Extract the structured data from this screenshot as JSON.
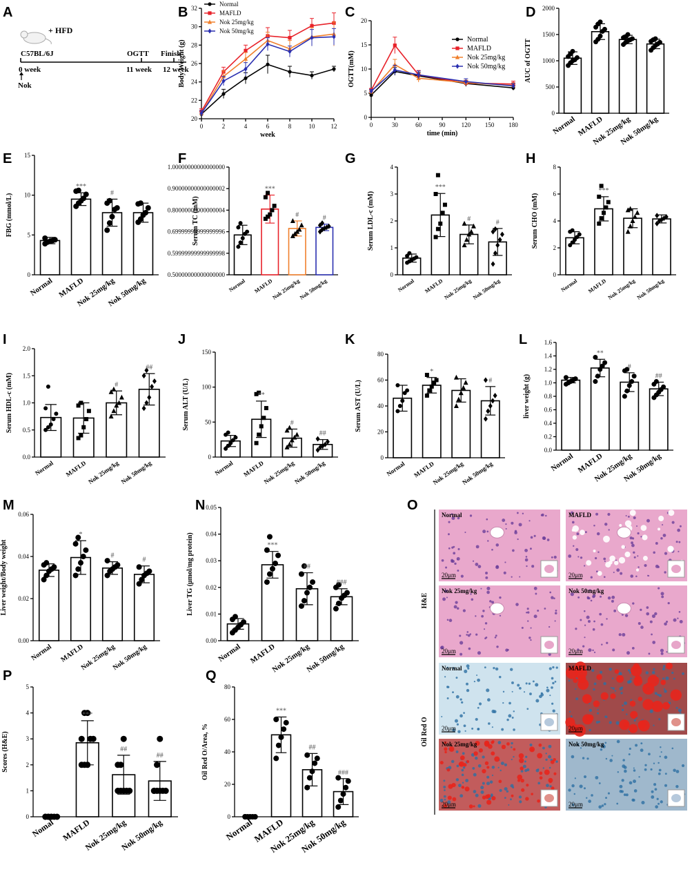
{
  "panel_letters": [
    "A",
    "B",
    "C",
    "D",
    "E",
    "F",
    "G",
    "H",
    "I",
    "J",
    "K",
    "L",
    "M",
    "N",
    "O",
    "P",
    "Q"
  ],
  "timeline": {
    "strain": "C57BL/6J",
    "diet": "HFD",
    "plus": "+",
    "start_week": "0 week",
    "treatment": "Nok",
    "ogtt_label": "OGTT",
    "ogtt_week": "11 week",
    "finish_label": "Finish",
    "finish_week": "12 week"
  },
  "groups": [
    "Normal",
    "MAFLD",
    "Nok 25mg/kg",
    "Nok 50mg/kg"
  ],
  "colors": {
    "normal": "#000000",
    "mafld": "#e8222a",
    "nok25": "#f07f2c",
    "nok50": "#2a2fb0"
  },
  "chart_data": [
    {
      "panel": "B",
      "type": "line",
      "xlabel": "week",
      "ylabel": "Body Weight (g)",
      "x": [
        0,
        2,
        4,
        6,
        8,
        10,
        12
      ],
      "xlim": [
        0,
        12
      ],
      "ylim": [
        20,
        32
      ],
      "yticks": [
        20,
        22,
        24,
        26,
        28,
        30,
        32
      ],
      "series": [
        {
          "name": "Normal",
          "values": [
            20.5,
            22.7,
            24.4,
            25.9,
            25.1,
            24.7,
            25.4
          ],
          "err": [
            0.3,
            0.5,
            0.6,
            1.0,
            0.6,
            0.4,
            0.3
          ]
        },
        {
          "name": "MAFLD",
          "values": [
            20.8,
            25.1,
            27.4,
            29.0,
            28.8,
            30.1,
            30.4
          ],
          "err": [
            0.3,
            0.5,
            0.6,
            0.9,
            0.8,
            0.8,
            1.1
          ]
        },
        {
          "name": "Nok 25mg/kg",
          "values": [
            20.6,
            24.6,
            26.5,
            28.5,
            27.6,
            28.9,
            29.2
          ],
          "err": [
            0.3,
            0.6,
            0.7,
            0.9,
            0.9,
            1.0,
            1.3
          ]
        },
        {
          "name": "Nok 50mg/kg",
          "values": [
            20.6,
            24.1,
            25.4,
            28.1,
            27.3,
            28.8,
            28.9
          ],
          "err": [
            0.3,
            0.5,
            0.7,
            0.7,
            0.6,
            0.9,
            0.9
          ]
        }
      ]
    },
    {
      "panel": "C",
      "type": "line",
      "xlabel": "time (min)",
      "ylabel": "OGTT(mM)",
      "x": [
        0,
        30,
        60,
        120,
        180
      ],
      "xticks": [
        0,
        30,
        60,
        90,
        120,
        150,
        180
      ],
      "xlim": [
        0,
        180
      ],
      "ylim": [
        0,
        20
      ],
      "yticks": [
        0,
        5,
        10,
        15,
        20
      ],
      "series": [
        {
          "name": "Normal",
          "values": [
            4.6,
            9.5,
            8.6,
            7.0,
            6.1
          ],
          "err": [
            0.3,
            0.8,
            0.7,
            0.6,
            0.5
          ]
        },
        {
          "name": "MAFLD",
          "values": [
            5.6,
            14.9,
            8.8,
            7.1,
            6.9
          ],
          "err": [
            0.4,
            1.7,
            0.9,
            0.5,
            0.6
          ]
        },
        {
          "name": "Nok 25mg/kg",
          "values": [
            5.3,
            10.9,
            8.1,
            7.2,
            6.6
          ],
          "err": [
            0.4,
            1.1,
            0.8,
            0.5,
            0.5
          ]
        },
        {
          "name": "Nok 50mg/kg",
          "values": [
            5.4,
            9.8,
            8.8,
            7.4,
            6.5
          ],
          "err": [
            0.4,
            1.0,
            0.8,
            0.6,
            0.5
          ]
        }
      ]
    },
    {
      "panel": "D",
      "type": "bar",
      "ylabel": "AUC of OGTT",
      "categories": [
        "Normal",
        "MAFLD",
        "Nok 25mg/kg",
        "Nok 50mg/kg"
      ],
      "values": [
        1050,
        1555,
        1405,
        1320
      ],
      "err": [
        120,
        150,
        80,
        90
      ],
      "ylim": [
        0,
        2000
      ],
      "yticks": [
        0,
        500,
        1000,
        1500,
        2000
      ],
      "sig": [
        "",
        "",
        "",
        ""
      ],
      "points": [
        [
          910,
          960,
          1000,
          1020,
          1060,
          1080,
          1130,
          1180
        ],
        [
          1360,
          1410,
          1470,
          1560,
          1600,
          1640,
          1700,
          1740
        ],
        [
          1310,
          1350,
          1380,
          1400,
          1420,
          1440,
          1460,
          1500
        ],
        [
          1200,
          1250,
          1290,
          1320,
          1350,
          1370,
          1400,
          1420
        ]
      ]
    },
    {
      "panel": "E",
      "type": "bar",
      "ylabel": "FBG (mmol/L)",
      "categories": [
        "Normal",
        "MAFLD",
        "Nok 25mg/kg",
        "Nok 50mg/kg"
      ],
      "values": [
        4.3,
        9.5,
        7.8,
        7.8
      ],
      "err": [
        0.4,
        0.8,
        1.7,
        1.2
      ],
      "ylim": [
        0,
        15
      ],
      "yticks": [
        0,
        5,
        10,
        15
      ],
      "sig": [
        "",
        "***",
        "#",
        ""
      ],
      "points": [
        [
          3.9,
          4.1,
          4.2,
          4.3,
          4.4,
          4.6
        ],
        [
          8.6,
          9.0,
          9.3,
          9.6,
          10.1,
          10.5,
          10.6
        ],
        [
          5.6,
          6.5,
          7.3,
          8.2,
          8.4,
          9.0,
          9.3
        ],
        [
          6.6,
          7.0,
          7.5,
          7.8,
          8.4,
          8.9,
          9.0
        ]
      ]
    },
    {
      "panel": "F",
      "type": "bar",
      "ylabel": "Serum TC (mM)",
      "categories": [
        "Normal",
        "MAFLD",
        "Nok 25mg/kg",
        "Nok 50mg/kg"
      ],
      "values": [
        0.685,
        0.805,
        0.715,
        0.72
      ],
      "err": [
        0.045,
        0.065,
        0.035,
        0.015
      ],
      "ylim": [
        0.5,
        1.0
      ],
      "yticks": [
        0.5,
        0.6,
        0.7,
        0.8,
        0.9,
        1.0
      ],
      "sig": [
        "",
        "***",
        "#",
        "#"
      ],
      "points": [
        [
          0.63,
          0.65,
          0.67,
          0.69,
          0.7,
          0.72,
          0.74
        ],
        [
          0.76,
          0.77,
          0.78,
          0.8,
          0.82,
          0.86,
          0.88
        ],
        [
          0.68,
          0.69,
          0.7,
          0.71,
          0.73,
          0.75
        ],
        [
          0.7,
          0.71,
          0.715,
          0.72,
          0.725,
          0.73,
          0.74
        ]
      ]
    },
    {
      "panel": "G",
      "type": "bar",
      "ylabel": "Serum LDL-c (mM)",
      "categories": [
        "Normal",
        "MAFLD",
        "Nok 25mg/kg",
        "Nok 50mg/kg"
      ],
      "values": [
        0.62,
        2.22,
        1.5,
        1.22
      ],
      "err": [
        0.15,
        0.8,
        0.35,
        0.5
      ],
      "ylim": [
        0,
        4
      ],
      "yticks": [
        0,
        1,
        2,
        3,
        4
      ],
      "sig": [
        "",
        "***",
        "#",
        "#"
      ],
      "points": [
        [
          0.45,
          0.5,
          0.55,
          0.6,
          0.65,
          0.7,
          0.8
        ],
        [
          1.4,
          1.7,
          1.9,
          2.3,
          2.6,
          3.0,
          3.7
        ],
        [
          1.1,
          1.3,
          1.5,
          1.6,
          1.8,
          1.9
        ],
        [
          0.4,
          0.8,
          1.1,
          1.3,
          1.5,
          1.6,
          1.7
        ]
      ]
    },
    {
      "panel": "H",
      "type": "bar",
      "ylabel": "Serum CHO (mM)",
      "categories": [
        "Normal",
        "MAFLD",
        "Nok 25mg/kg",
        "Nok 50mg/kg"
      ],
      "values": [
        2.75,
        4.9,
        4.2,
        4.15
      ],
      "err": [
        0.45,
        0.9,
        0.7,
        0.3
      ],
      "ylim": [
        0,
        8
      ],
      "yticks": [
        0,
        2,
        4,
        6,
        8
      ],
      "sig": [
        "",
        "***",
        "",
        ""
      ],
      "points": [
        [
          2.2,
          2.4,
          2.6,
          2.8,
          3.0,
          3.2,
          3.3
        ],
        [
          3.8,
          4.2,
          4.6,
          5.0,
          5.4,
          5.8,
          6.6
        ],
        [
          3.2,
          3.6,
          4.0,
          4.3,
          4.6,
          4.8,
          4.9
        ],
        [
          3.8,
          4.0,
          4.1,
          4.2,
          4.3,
          4.4
        ]
      ]
    },
    {
      "panel": "I",
      "type": "bar",
      "ylabel": "Serum  HDL-c (mM)",
      "categories": [
        "Normal",
        "MAFLD",
        "Nok 25mg/kg",
        "Nok 50mg/kg"
      ],
      "values": [
        0.73,
        0.72,
        1.0,
        1.25
      ],
      "err": [
        0.24,
        0.28,
        0.22,
        0.29
      ],
      "ylim": [
        0,
        2
      ],
      "yticks": [
        0,
        0.5,
        1.0,
        1.5,
        2.0
      ],
      "sig": [
        "",
        "",
        "#",
        "##"
      ],
      "points": [
        [
          0.5,
          0.55,
          0.6,
          0.7,
          0.8,
          0.9,
          1.3
        ],
        [
          0.35,
          0.4,
          0.55,
          0.7,
          0.85,
          0.95,
          1.0
        ],
        [
          0.75,
          0.85,
          0.95,
          1.0,
          1.1,
          1.2,
          1.25
        ],
        [
          0.9,
          1.0,
          1.1,
          1.3,
          1.4,
          1.5,
          1.6
        ]
      ]
    },
    {
      "panel": "J",
      "type": "bar",
      "ylabel": "Serum ALT (U/L)",
      "categories": [
        "Normal",
        "MAFLD",
        "Nok 25mg/kg",
        "Nok 50mg/kg"
      ],
      "values": [
        23,
        54,
        27,
        18
      ],
      "err": [
        8,
        26,
        13,
        7
      ],
      "ylim": [
        0,
        150
      ],
      "yticks": [
        0,
        50,
        100,
        150
      ],
      "sig": [
        "",
        "**",
        "#",
        "##"
      ],
      "points": [
        [
          12,
          16,
          20,
          24,
          28,
          32,
          35
        ],
        [
          20,
          32,
          44,
          56,
          70,
          90,
          92
        ],
        [
          14,
          18,
          24,
          28,
          32,
          38,
          42
        ],
        [
          10,
          14,
          16,
          18,
          22,
          26
        ]
      ]
    },
    {
      "panel": "K",
      "type": "bar",
      "ylabel": "Serum AST (U/L)",
      "categories": [
        "Normal",
        "MAFLD",
        "Nok 25mg/kg",
        "Nok 50mg/kg"
      ],
      "values": [
        46,
        56,
        52,
        44
      ],
      "err": [
        10,
        6,
        9,
        11
      ],
      "ylim": [
        0,
        80
      ],
      "yticks": [
        0,
        20,
        40,
        60,
        80
      ],
      "sig": [
        "",
        "*",
        "",
        "#"
      ],
      "points": [
        [
          36,
          40,
          44,
          50,
          52,
          56
        ],
        [
          48,
          52,
          55,
          58,
          60,
          64
        ],
        [
          40,
          45,
          50,
          54,
          58,
          62
        ],
        [
          30,
          36,
          40,
          44,
          48,
          60
        ]
      ]
    },
    {
      "panel": "L",
      "type": "bar",
      "ylabel": "liver weight (g)",
      "categories": [
        "Normal",
        "MAFLD",
        "Nok 25mg/kg",
        "Nok 50mg/kg"
      ],
      "values": [
        1.04,
        1.22,
        1.01,
        0.91
      ],
      "err": [
        0.04,
        0.13,
        0.14,
        0.1
      ],
      "ylim": [
        0,
        1.6
      ],
      "yticks": [
        0.0,
        0.2,
        0.4,
        0.6,
        0.8,
        1.0,
        1.2,
        1.4,
        1.6
      ],
      "sig": [
        "",
        "**",
        "#",
        "##"
      ],
      "points": [
        [
          0.98,
          1.0,
          1.02,
          1.04,
          1.06,
          1.08
        ],
        [
          1.02,
          1.1,
          1.2,
          1.25,
          1.3,
          1.38
        ],
        [
          0.8,
          0.88,
          0.96,
          1.02,
          1.1,
          1.18,
          1.2
        ],
        [
          0.78,
          0.82,
          0.86,
          0.9,
          0.94,
          0.98,
          1.02
        ]
      ]
    },
    {
      "panel": "M",
      "type": "bar",
      "ylabel": "Liver weight/Body weight",
      "categories": [
        "Normal",
        "MAFLD",
        "Nok 25mg/kg",
        "Nok 50mg/kg"
      ],
      "values": [
        0.0335,
        0.0395,
        0.0345,
        0.0315
      ],
      "err": [
        0.003,
        0.008,
        0.003,
        0.004
      ],
      "ylim": [
        0,
        0.06
      ],
      "yticks": [
        0.0,
        0.02,
        0.04,
        0.06
      ],
      "sig": [
        "",
        "*",
        "#",
        "#"
      ],
      "points": [
        [
          0.029,
          0.031,
          0.033,
          0.034,
          0.035,
          0.036,
          0.037
        ],
        [
          0.031,
          0.034,
          0.037,
          0.04,
          0.043,
          0.046,
          0.049
        ],
        [
          0.031,
          0.033,
          0.034,
          0.035,
          0.036,
          0.038
        ],
        [
          0.027,
          0.029,
          0.031,
          0.032,
          0.033,
          0.035
        ]
      ]
    },
    {
      "panel": "N",
      "type": "bar",
      "ylabel": "Liver TG (μmol/mg protein)",
      "categories": [
        "Normal",
        "MAFLD",
        "Nok 25mg/kg",
        "Nok 50mg/kg"
      ],
      "values": [
        0.0063,
        0.0285,
        0.0195,
        0.0165
      ],
      "err": [
        0.002,
        0.005,
        0.006,
        0.003
      ],
      "ylim": [
        0,
        0.05
      ],
      "yticks": [
        0.0,
        0.01,
        0.02,
        0.03,
        0.04,
        0.05
      ],
      "sig": [
        "",
        "***",
        "##",
        "###"
      ],
      "points": [
        [
          0.003,
          0.004,
          0.005,
          0.006,
          0.007,
          0.008,
          0.009
        ],
        [
          0.022,
          0.025,
          0.027,
          0.029,
          0.032,
          0.034,
          0.039
        ],
        [
          0.013,
          0.015,
          0.018,
          0.02,
          0.022,
          0.025,
          0.028
        ],
        [
          0.012,
          0.014,
          0.016,
          0.017,
          0.018,
          0.02,
          0.021
        ]
      ]
    },
    {
      "panel": "P",
      "type": "bar",
      "ylabel": "Scores (H&E)",
      "categories": [
        "Nomal",
        "MAFLD",
        "Nok 25mg/kg",
        "Nok 50mg/kg"
      ],
      "values": [
        0,
        2.85,
        1.62,
        1.38
      ],
      "err": [
        0,
        0.85,
        0.75,
        0.75
      ],
      "ylim": [
        0,
        5
      ],
      "yticks": [
        0,
        1,
        2,
        3,
        4,
        5
      ],
      "sig": [
        "",
        "***",
        "##",
        "##"
      ],
      "points": [
        [
          0,
          0,
          0,
          0,
          0,
          0,
          0,
          0
        ],
        [
          2,
          2,
          2,
          3,
          3,
          3,
          4,
          4
        ],
        [
          1,
          1,
          1,
          1,
          1,
          2,
          2,
          3
        ],
        [
          1,
          1,
          1,
          1,
          1,
          1,
          2,
          3
        ]
      ]
    },
    {
      "panel": "Q",
      "type": "bar",
      "ylabel": "Oil Red O/Area, %",
      "categories": [
        "Normal",
        "MAFLD",
        "Nok 25mg/kg",
        "Nok 50mg/kg"
      ],
      "values": [
        0,
        50.5,
        29,
        15.5
      ],
      "err": [
        0,
        11,
        10,
        8
      ],
      "ylim": [
        0,
        80
      ],
      "yticks": [
        0,
        20,
        40,
        60,
        80
      ],
      "sig": [
        "",
        "***",
        "##",
        "###"
      ],
      "points": [
        [
          0,
          0,
          0,
          0,
          0,
          0
        ],
        [
          36,
          44,
          49,
          54,
          58,
          60
        ],
        [
          18,
          24,
          28,
          33,
          36,
          38
        ],
        [
          6,
          10,
          14,
          18,
          22,
          24
        ]
      ]
    }
  ],
  "histology": {
    "row_labels": [
      "H&E",
      "Oil Red O"
    ],
    "panels": [
      "Normal",
      "MAFLD",
      "Nok 25mg/kg",
      "Nok 50mg/kg",
      "Normal",
      "MAFLD",
      "Nok 25mg/kg",
      "Nok 50mg/kg"
    ],
    "scale": "20μm"
  }
}
